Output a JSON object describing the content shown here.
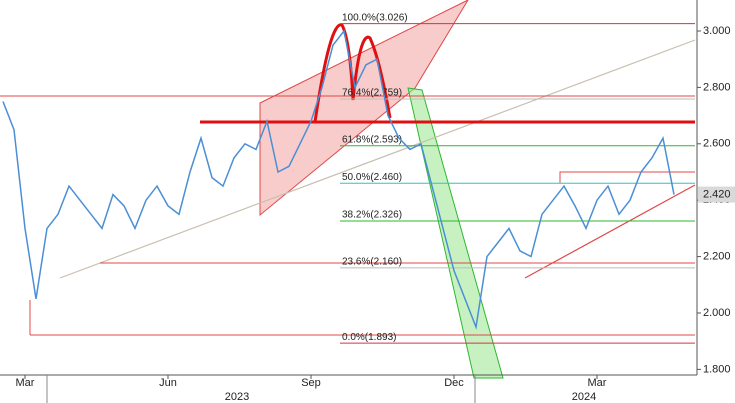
{
  "chart_data": {
    "type": "line",
    "categories": [
      null,
      null,
      "Mar",
      null,
      null,
      null,
      null,
      null,
      null,
      null,
      null,
      null,
      null,
      null,
      null,
      "Jun",
      null,
      null,
      null,
      null,
      null,
      null,
      null,
      null,
      null,
      null,
      null,
      null,
      "Sep",
      null,
      null,
      null,
      null,
      null,
      null,
      null,
      null,
      null,
      null,
      null,
      null,
      "Dec",
      null,
      null,
      null,
      null,
      null,
      null,
      null,
      null,
      null,
      null,
      null,
      null,
      "Mar",
      null,
      null,
      null,
      null,
      null,
      null,
      null
    ],
    "year_labels": [
      "2023",
      "2024"
    ],
    "series": [
      {
        "color": "#4a8fd6",
        "values": [
          2.75,
          2.65,
          2.3,
          2.05,
          2.3,
          2.35,
          2.45,
          2.4,
          2.35,
          2.3,
          2.42,
          2.38,
          2.3,
          2.4,
          2.45,
          2.38,
          2.35,
          2.5,
          2.62,
          2.48,
          2.45,
          2.55,
          2.6,
          2.58,
          2.68,
          2.5,
          2.52,
          2.6,
          2.68,
          2.8,
          2.95,
          3.0,
          2.8,
          2.88,
          2.9,
          2.7,
          2.62,
          2.58,
          2.6,
          2.45,
          2.3,
          2.15,
          2.05,
          1.95,
          2.2,
          2.25,
          2.3,
          2.22,
          2.2,
          2.35,
          2.4,
          2.45,
          2.38,
          2.3,
          2.4,
          2.45,
          2.35,
          2.4,
          2.5,
          2.55,
          2.62,
          2.42
        ]
      }
    ],
    "ylim": [
      1.78,
      3.11
    ],
    "yticks": [
      {
        "value": 1.8,
        "label": "1.800"
      },
      {
        "value": 2.0,
        "label": "2.000"
      },
      {
        "value": 2.2,
        "label": "2.200"
      },
      {
        "value": 2.4,
        "label": "2.400"
      },
      {
        "value": 2.6,
        "label": "2.600"
      },
      {
        "value": 2.8,
        "label": "2.800"
      },
      {
        "value": 3.0,
        "label": "3.000"
      }
    ],
    "fib_levels": [
      {
        "value": 3.026,
        "label": "100.0%(3.026)",
        "color": "#d9333f"
      },
      {
        "value": 2.759,
        "label": "76.4%(2.759)",
        "color": "#bbbbbb"
      },
      {
        "value": 2.593,
        "label": "61.8%(2.593)",
        "color": "#2db82d"
      },
      {
        "value": 2.46,
        "label": "50.0%(2.460)",
        "color": "#27c6d6"
      },
      {
        "value": 2.326,
        "label": "38.2%(2.326)",
        "color": "#2db82d"
      },
      {
        "value": 2.16,
        "label": "23.6%(2.160)",
        "color": "#bbbbbb"
      },
      {
        "value": 1.893,
        "label": "0.0%(1.893)",
        "color": "#d9333f"
      }
    ],
    "last_price": {
      "value": 2.42,
      "label": "2.420"
    }
  }
}
